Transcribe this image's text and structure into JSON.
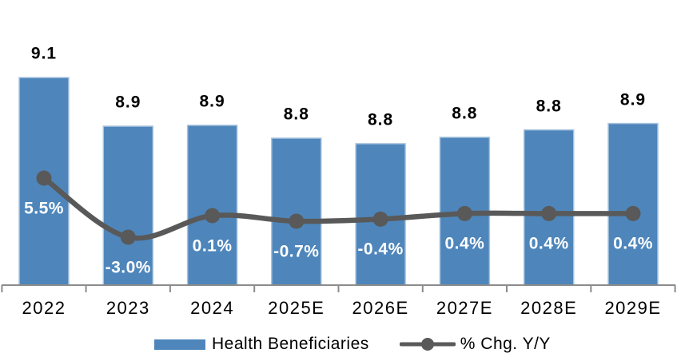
{
  "chart_data": {
    "type": "combo_bar_line",
    "title": "",
    "categories": [
      "2022",
      "2023",
      "2024",
      "2025E",
      "2026E",
      "2027E",
      "2028E",
      "2029E"
    ],
    "series": [
      {
        "name": "Health Beneficiaries",
        "type": "bar",
        "color": "#4E86BB",
        "border_color": "#A9C4DE",
        "values": [
          9.1,
          8.9,
          8.9,
          8.8,
          8.8,
          8.8,
          8.8,
          8.9
        ],
        "data_labels": [
          "9.1",
          "8.9",
          "8.9",
          "8.8",
          "8.8",
          "8.8",
          "8.8",
          "8.9"
        ],
        "values_precise_est": [
          9.13,
          8.865,
          8.87,
          8.8,
          8.77,
          8.805,
          8.845,
          8.88
        ],
        "label_color": "#000000"
      },
      {
        "name": "% Chg. Y/Y",
        "type": "line",
        "color": "#595959",
        "values": [
          5.5,
          -3.0,
          0.1,
          -0.7,
          -0.4,
          0.4,
          0.4,
          0.4
        ],
        "data_labels": [
          "5.5%",
          "-3.0%",
          "0.1%",
          "-0.7%",
          "-0.4%",
          "0.4%",
          "0.4%",
          "0.4%"
        ],
        "label_color": "#FFFFFF"
      }
    ],
    "axes": {
      "x": {
        "tick_labels_visible": true,
        "axis_color": "#8C8C8C"
      },
      "y_bar": {
        "labels_visible": false,
        "min_est": 8.0
      },
      "y_pct": {
        "labels_visible": false
      }
    },
    "grid": "off",
    "legend": {
      "position": "bottom"
    },
    "background": "#FFFFFF"
  }
}
